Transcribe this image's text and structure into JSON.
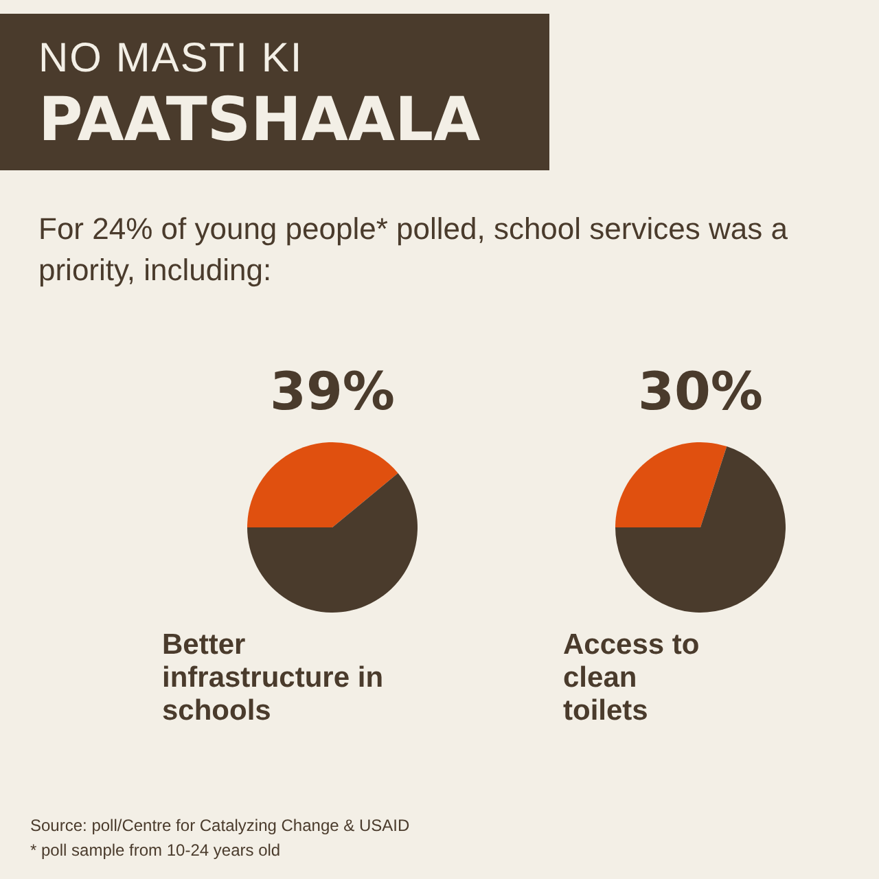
{
  "chart_data": [
    {
      "type": "other",
      "title": "NO MASTI KI\nPAATSHAALA",
      "subtitle": "For 24% of young people* polled, school services was a priority, including:",
      "annotations": [
        "Source: poll/Centre for Catalyzing Change & USAID",
        "* poll sample from 10-24 years old"
      ]
    },
    {
      "type": "pie",
      "xlabel": "Better infrastructure in schools",
      "categories": [
        null,
        null
      ],
      "values": [
        39,
        61
      ],
      "colors": [
        "#e0500f",
        "#4a3b2c"
      ],
      "value_labels": [
        "39%",
        null
      ]
    },
    {
      "type": "pie",
      "xlabel": "Access to clean toilets",
      "categories": [
        null,
        null
      ],
      "values": [
        30,
        70
      ],
      "colors": [
        "#e0500f",
        "#4a3b2c"
      ],
      "value_labels": [
        "30%",
        null
      ]
    }
  ]
}
